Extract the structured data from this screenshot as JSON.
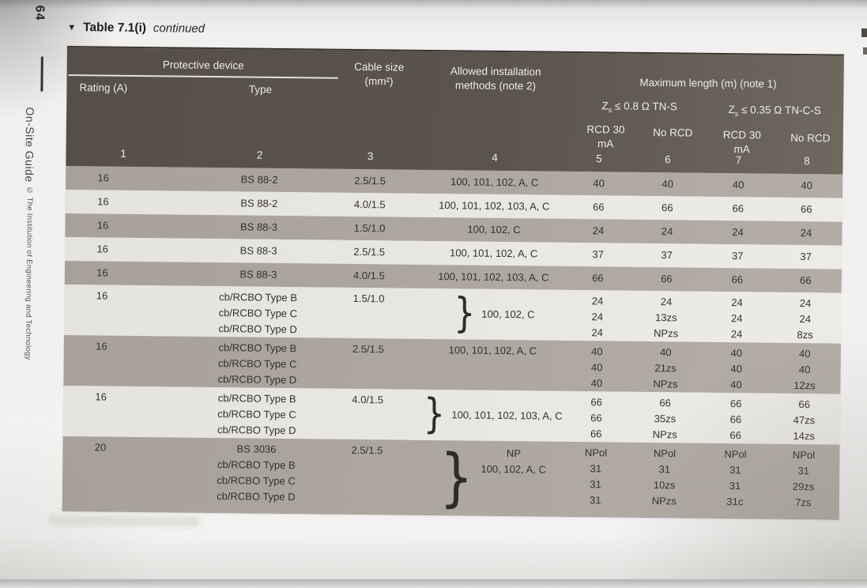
{
  "page": {
    "number": "64",
    "book_title": "On-Site Guide",
    "copyright": "© The Institution of Engineering and Technology",
    "caption": {
      "marker": "▼",
      "title": "Table 7.1(i)",
      "continued": "continued"
    }
  },
  "colors": {
    "header_band": "#5b544c",
    "row_gray": "#aca69e",
    "row_light": "#e7e5e1",
    "header_text": "#eeebe5",
    "body_text": "#34312d"
  },
  "table": {
    "header": {
      "protective_device": "Protective device",
      "rating": "Rating (A)",
      "type": "Type",
      "cable_size": "Cable size\n(mm²)",
      "methods": "Allowed installation\nmethods (note 2)",
      "max_length": "Maximum length (m) (note 1)",
      "zs1": {
        "z": "Z",
        "sub": "s",
        "rest": " ≤ 0.8 Ω TN-S"
      },
      "zs2": {
        "z": "Z",
        "sub": "s",
        "rest": " ≤ 0.35 Ω TN-C-S"
      },
      "rcd1": "RCD 30\nmA",
      "norcd1": "No RCD",
      "rcd2": "RCD 30\nmA",
      "norcd2": "No RCD",
      "column_numbers": [
        "1",
        "2",
        "3",
        "4",
        "5",
        "6",
        "7",
        "8"
      ]
    },
    "rows": [
      {
        "shade": "gray",
        "rating": "16",
        "type": "BS 88-2",
        "cable": "2.5/1.5",
        "brace": false,
        "methods": "100, 101, 102, A, C",
        "c5": "40",
        "c6": "40",
        "c7": "40",
        "c8": "40"
      },
      {
        "shade": "light",
        "rating": "16",
        "type": "BS 88-2",
        "cable": "4.0/1.5",
        "brace": false,
        "methods": "100, 101, 102, 103, A, C",
        "c5": "66",
        "c6": "66",
        "c7": "66",
        "c8": "66"
      },
      {
        "shade": "gray",
        "rating": "16",
        "type": "BS 88-3",
        "cable": "1.5/1.0",
        "brace": false,
        "methods": "100, 102, C",
        "c5": "24",
        "c6": "24",
        "c7": "24",
        "c8": "24"
      },
      {
        "shade": "light",
        "rating": "16",
        "type": "BS 88-3",
        "cable": "2.5/1.5",
        "brace": false,
        "methods": "100, 101, 102, A, C",
        "c5": "37",
        "c6": "37",
        "c7": "37",
        "c8": "37"
      },
      {
        "shade": "gray",
        "rating": "16",
        "type": "BS 88-3",
        "cable": "4.0/1.5",
        "brace": false,
        "methods": "100, 101, 102, 103, A, C",
        "c5": "66",
        "c6": "66",
        "c7": "66",
        "c8": "66"
      },
      {
        "shade": "light",
        "rating": "16",
        "type": "cb/RCBO Type B\ncb/RCBO Type C\ncb/RCBO Type D",
        "cable": "1.5/1.0",
        "brace": true,
        "methods": "100, 102, C",
        "c5": "24\n24\n24",
        "c6": "24\n13zs\nNPzs",
        "c7": "24\n24\n24",
        "c8": "24\n24\n8zs"
      },
      {
        "shade": "gray",
        "rating": "16",
        "type": "cb/RCBO Type B\ncb/RCBO Type C\ncb/RCBO Type D",
        "cable": "2.5/1.5",
        "brace": false,
        "methods": "100, 101, 102, A, C",
        "c5": "40\n40\n40",
        "c6": "40\n21zs\nNPzs",
        "c7": "40\n40\n40",
        "c8": "40\n40\n12zs"
      },
      {
        "shade": "light",
        "rating": "16",
        "type": "cb/RCBO Type B\ncb/RCBO Type C\ncb/RCBO Type D",
        "cable": "4.0/1.5",
        "brace": true,
        "methods": "100, 101, 102, 103, A, C",
        "c5": "66\n66\n66",
        "c6": "66\n35zs\nNPzs",
        "c7": "66\n66\n66",
        "c8": "66\n47zs\n14zs"
      },
      {
        "shade": "gray",
        "rating": "20",
        "type": "BS 3036\ncb/RCBO Type B\ncb/RCBO Type C\ncb/RCBO Type D",
        "cable": "2.5/1.5",
        "brace": true,
        "methods": "NP\n100, 102, A, C",
        "c5": "NPol\n31\n31\n31",
        "c6": "NPol\n31\n10zs\nNPzs",
        "c7": "NPol\n31\n31\n31c",
        "c8": "NPol\n31\n29zs\n7zs"
      }
    ]
  }
}
